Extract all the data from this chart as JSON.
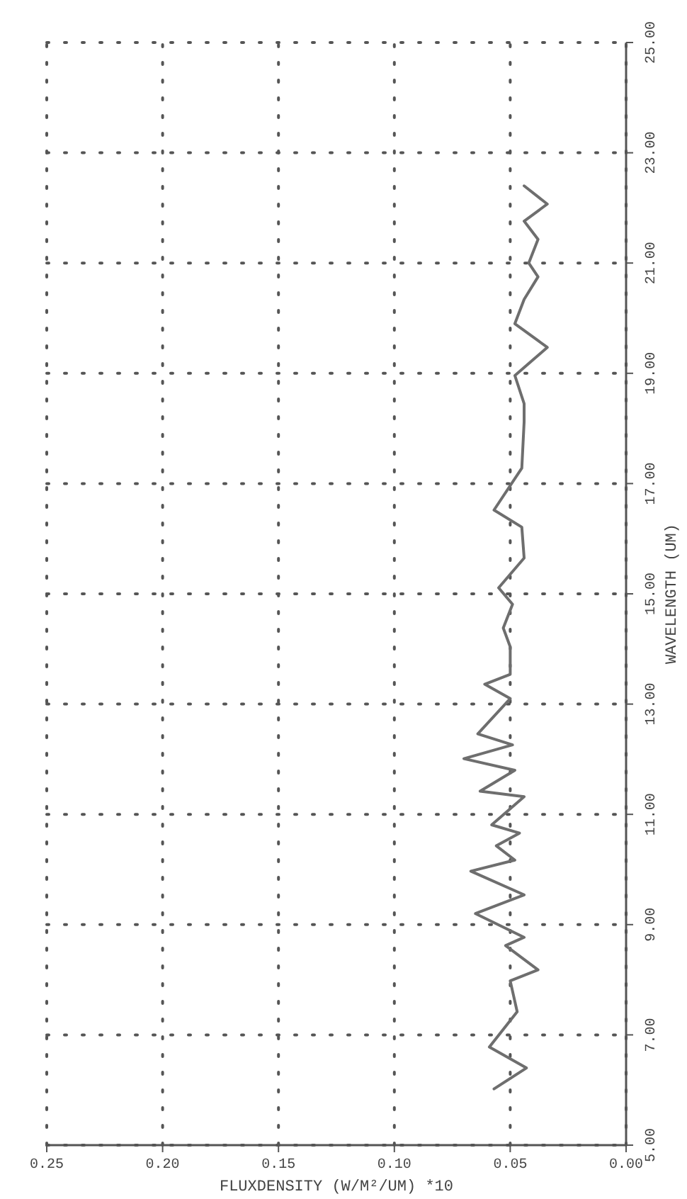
{
  "chart_data": {
    "type": "line",
    "xlabel": "FLUXDENSITY (W/M²/UM) *10",
    "ylabel": "WAVELENGTH (UM)",
    "x": [
      0.057,
      0.043,
      0.059,
      0.047,
      0.05,
      0.038,
      0.052,
      0.044,
      0.065,
      0.044,
      0.067,
      0.048,
      0.056,
      0.046,
      0.058,
      0.044,
      0.063,
      0.048,
      0.07,
      0.049,
      0.064,
      0.05,
      0.061,
      0.05,
      0.05,
      0.053,
      0.049,
      0.055,
      0.044,
      0.045,
      0.057,
      0.045,
      0.044,
      0.044,
      0.048,
      0.034,
      0.048,
      0.044,
      0.038,
      0.042,
      0.038,
      0.044,
      0.034,
      0.044
    ],
    "series": [
      {
        "color": "#6e6e6e",
        "values": [
          6.02,
          6.4,
          6.78,
          7.42,
          7.98,
          8.18,
          8.62,
          8.77,
          9.2,
          9.54,
          9.97,
          10.17,
          10.43,
          10.66,
          10.81,
          11.32,
          11.42,
          11.8,
          12.01,
          12.26,
          12.46,
          13.1,
          13.36,
          13.54,
          14.04,
          14.38,
          14.81,
          15.11,
          15.65,
          16.21,
          16.52,
          17.28,
          18.12,
          18.45,
          18.96,
          19.47,
          19.9,
          20.34,
          20.75,
          21.0,
          21.43,
          21.76,
          22.07,
          22.4
        ]
      }
    ],
    "ylim": [
      5,
      25
    ],
    "yticks": [
      {
        "value": 5,
        "label": "5.00"
      },
      {
        "value": 7,
        "label": "7.00"
      },
      {
        "value": 9,
        "label": "9.00"
      },
      {
        "value": 11,
        "label": "11.00"
      },
      {
        "value": 13,
        "label": "13.00"
      },
      {
        "value": 15,
        "label": "15.00"
      },
      {
        "value": 17,
        "label": "17.00"
      },
      {
        "value": 19,
        "label": "19.00"
      },
      {
        "value": 21,
        "label": "21.00"
      },
      {
        "value": 23,
        "label": "23.00"
      },
      {
        "value": 25,
        "label": "25.00"
      }
    ],
    "xlim": [
      0.25,
      0
    ],
    "xticks": [
      {
        "value": 0,
        "label": "0.00"
      },
      {
        "value": 0.05,
        "label": "0.05"
      },
      {
        "value": 0.1,
        "label": "0.10"
      },
      {
        "value": 0.15,
        "label": "0.15"
      },
      {
        "value": 0.2,
        "label": "0.20"
      },
      {
        "value": 0.25,
        "label": "0.25"
      }
    ],
    "grid": true,
    "marker": "none",
    "line_style": "solid"
  }
}
